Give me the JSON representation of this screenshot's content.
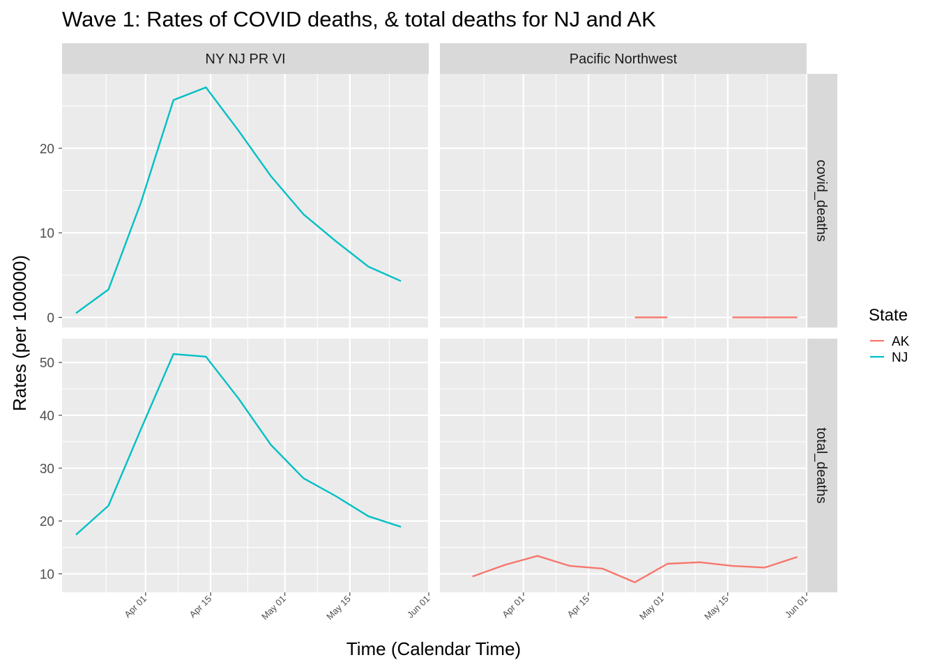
{
  "chart_data": {
    "type": "line",
    "title": "Wave 1: Rates of COVID deaths, & total deaths for NJ and AK",
    "xlabel": "Time (Calendar Time)",
    "ylabel": "Rates (per 100000)",
    "columns": [
      "NY NJ PR VI",
      "Pacific Northwest"
    ],
    "rows": [
      "covid_deaths",
      "total_deaths"
    ],
    "x_ticks": [
      "Apr 01",
      "Apr 15",
      "May 01",
      "May 15",
      "Jun 01"
    ],
    "y_ticks": {
      "covid_deaths": [
        0,
        10,
        20
      ],
      "total_deaths": [
        10,
        20,
        30,
        40,
        50
      ]
    },
    "legend": {
      "title": "State",
      "entries": [
        {
          "label": "AK",
          "color": "#F8766D"
        },
        {
          "label": "NJ",
          "color": "#00BFC4"
        }
      ]
    },
    "series": [
      {
        "name": "NJ",
        "panel_column": "NY NJ PR VI",
        "row": "covid_deaths",
        "color": "#00BFC4",
        "dates": [
          "2020-03-17",
          "2020-03-24",
          "2020-03-31",
          "2020-04-07",
          "2020-04-14",
          "2020-04-21",
          "2020-04-28",
          "2020-05-05",
          "2020-05-12",
          "2020-05-19",
          "2020-05-26"
        ],
        "values": [
          0.5,
          3.3,
          13.6,
          25.7,
          27.2,
          22.1,
          16.7,
          12.2,
          9.0,
          6.0,
          4.3
        ]
      },
      {
        "name": "NJ",
        "panel_column": "NY NJ PR VI",
        "row": "total_deaths",
        "color": "#00BFC4",
        "dates": [
          "2020-03-17",
          "2020-03-24",
          "2020-03-31",
          "2020-04-07",
          "2020-04-14",
          "2020-04-21",
          "2020-04-28",
          "2020-05-05",
          "2020-05-12",
          "2020-05-19",
          "2020-05-26"
        ],
        "values": [
          17.4,
          22.9,
          37.4,
          51.6,
          51.1,
          43.2,
          34.4,
          28.1,
          24.7,
          20.9,
          18.9
        ]
      },
      {
        "name": "AK",
        "panel_column": "Pacific Northwest",
        "row": "covid_deaths",
        "color": "#F8766D",
        "segments": [
          {
            "dates": [
              "2020-04-25",
              "2020-05-02"
            ],
            "values": [
              0.0,
              0.0
            ]
          },
          {
            "dates": [
              "2020-05-16",
              "2020-05-23",
              "2020-05-30"
            ],
            "values": [
              0.0,
              0.0,
              0.0
            ]
          }
        ]
      },
      {
        "name": "AK",
        "panel_column": "Pacific Northwest",
        "row": "total_deaths",
        "color": "#F8766D",
        "dates": [
          "2020-03-21",
          "2020-03-28",
          "2020-04-04",
          "2020-04-11",
          "2020-04-18",
          "2020-04-25",
          "2020-05-02",
          "2020-05-09",
          "2020-05-16",
          "2020-05-23",
          "2020-05-30"
        ],
        "values": [
          9.5,
          11.7,
          13.4,
          11.5,
          11.0,
          8.4,
          11.9,
          12.2,
          11.5,
          11.2,
          13.2
        ]
      }
    ],
    "xlim": [
      "2020-03-14",
      "2020-06-01"
    ],
    "ylim": {
      "covid_deaths": [
        -1.2,
        28.8
      ],
      "total_deaths": [
        6.5,
        54.5
      ]
    }
  }
}
